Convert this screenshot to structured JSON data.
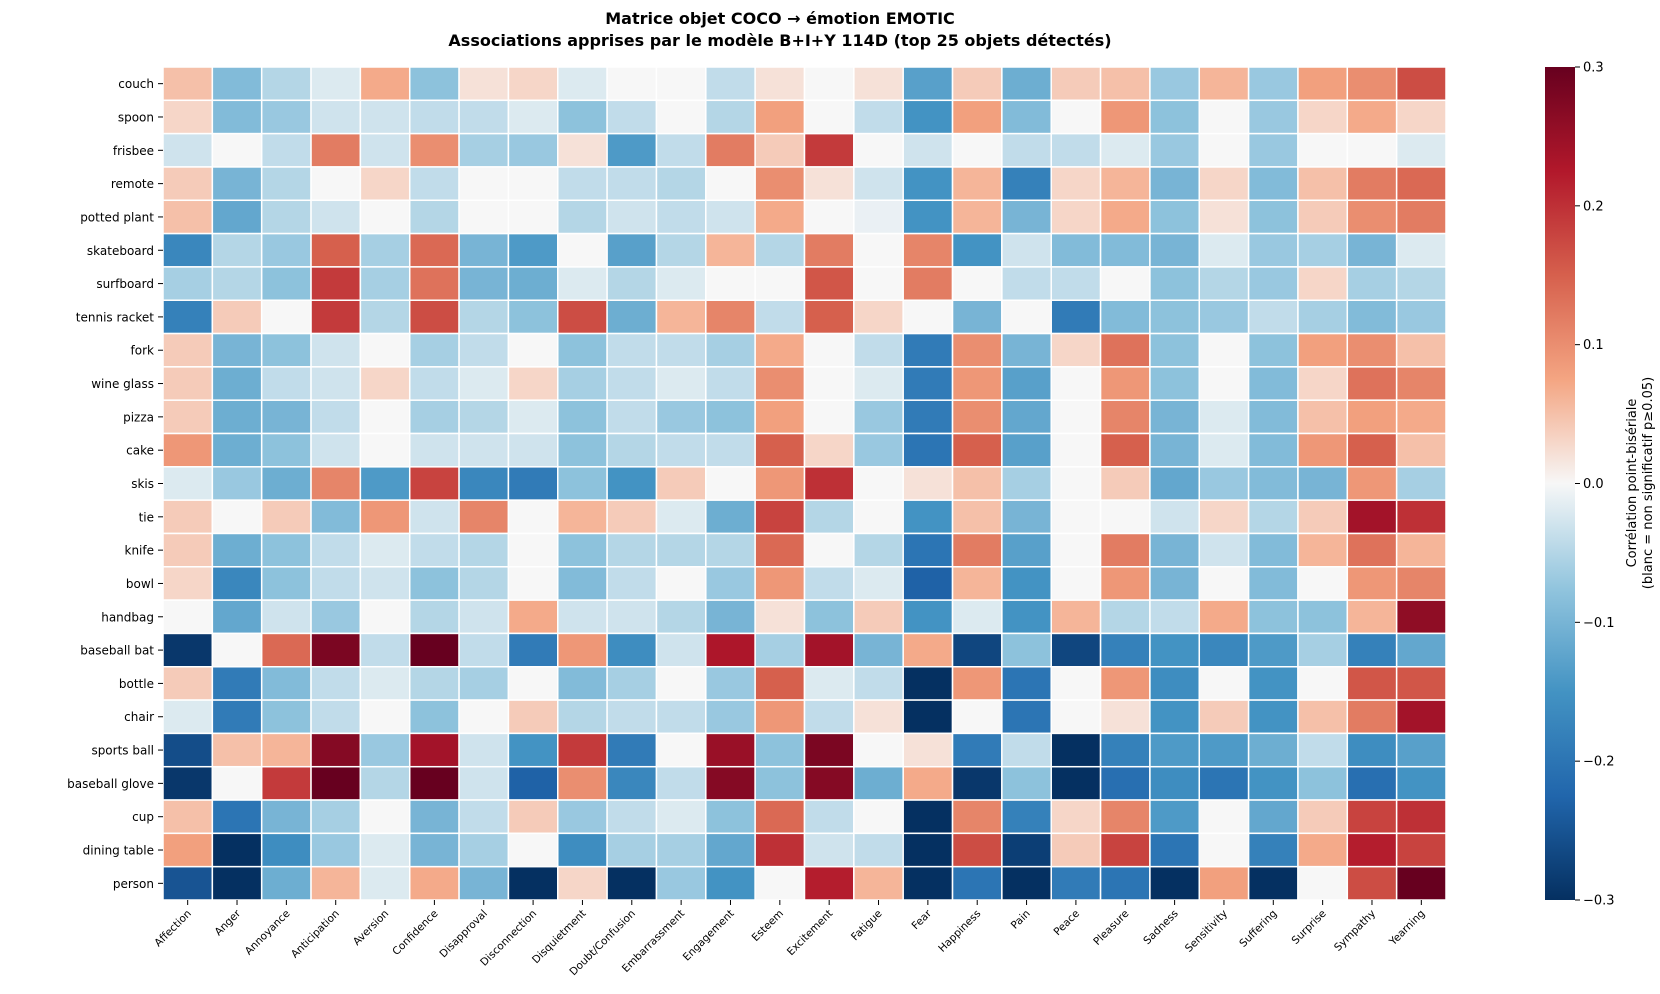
{
  "chart_data": {
    "type": "heatmap",
    "title": "Matrice objet COCO → émotion EMOTIC",
    "subtitle": "Associations apprises par le modèle B+I+Y 114D (top 25 objets détectés)",
    "xlabel": "",
    "ylabel": "",
    "colorbar_label_line1": "Corrélation point-bisériale",
    "colorbar_label_line2": "(blanc = non significatif p≥0.05)",
    "colormap": "RdBu_r",
    "vmin": -0.3,
    "vmax": 0.3,
    "colorbar_ticks": [
      "0.3",
      "0.2",
      "0.1",
      "0.0",
      "−0.1",
      "−0.2",
      "−0.3"
    ],
    "colorbar_tick_values": [
      0.3,
      0.2,
      0.1,
      0.0,
      -0.1,
      -0.2,
      -0.3
    ],
    "cell_border_color": "#ffffff",
    "columns": [
      "Affection",
      "Anger",
      "Annoyance",
      "Anticipation",
      "Aversion",
      "Confidence",
      "Disapproval",
      "Disconnection",
      "Disquietment",
      "Doubt/Confusion",
      "Embarrassment",
      "Engagement",
      "Esteem",
      "Excitement",
      "Fatigue",
      "Fear",
      "Happiness",
      "Pain",
      "Peace",
      "Pleasure",
      "Sadness",
      "Sensitivity",
      "Suffering",
      "Surprise",
      "Sympathy",
      "Yearning"
    ],
    "rows": [
      "couch",
      "spoon",
      "frisbee",
      "remote",
      "potted plant",
      "skateboard",
      "surfboard",
      "tennis racket",
      "fork",
      "wine glass",
      "pizza",
      "cake",
      "skis",
      "tie",
      "knife",
      "bowl",
      "handbag",
      "baseball bat",
      "bottle",
      "chair",
      "sports ball",
      "baseball glove",
      "cup",
      "dining table",
      "person"
    ],
    "values": [
      [
        0.05,
        -0.09,
        -0.05,
        -0.02,
        0.07,
        -0.08,
        0.02,
        0.03,
        -0.02,
        0.0,
        0.0,
        -0.04,
        0.02,
        0.0,
        0.02,
        -0.13,
        0.04,
        -0.11,
        0.04,
        0.05,
        -0.07,
        0.06,
        -0.07,
        0.08,
        0.1,
        0.17
      ],
      [
        0.03,
        -0.09,
        -0.07,
        -0.03,
        -0.03,
        -0.04,
        -0.04,
        -0.02,
        -0.08,
        -0.04,
        0.0,
        -0.05,
        0.08,
        0.0,
        -0.04,
        -0.15,
        0.08,
        -0.09,
        0.0,
        0.09,
        -0.08,
        0.0,
        -0.07,
        0.03,
        0.07,
        0.03
      ],
      [
        -0.03,
        0.0,
        -0.04,
        0.12,
        -0.03,
        0.1,
        -0.06,
        -0.07,
        0.02,
        -0.14,
        -0.04,
        0.12,
        0.04,
        0.19,
        0.0,
        -0.03,
        0.0,
        -0.04,
        -0.04,
        -0.02,
        -0.07,
        0.0,
        -0.07,
        0.0,
        0.0,
        -0.02
      ],
      [
        0.04,
        -0.1,
        -0.05,
        0.0,
        0.03,
        -0.04,
        0.0,
        0.0,
        -0.04,
        -0.04,
        -0.05,
        0.0,
        0.1,
        0.02,
        -0.03,
        -0.15,
        0.06,
        -0.18,
        0.03,
        0.06,
        -0.1,
        0.03,
        -0.09,
        0.05,
        0.12,
        0.14
      ],
      [
        0.05,
        -0.12,
        -0.05,
        -0.03,
        0.0,
        -0.05,
        0.0,
        0.0,
        -0.05,
        -0.03,
        -0.04,
        -0.03,
        0.07,
        0.0,
        -0.01,
        -0.15,
        0.06,
        -0.1,
        0.03,
        0.07,
        -0.08,
        0.02,
        -0.08,
        0.04,
        0.1,
        0.12
      ],
      [
        -0.17,
        -0.05,
        -0.07,
        0.15,
        -0.06,
        0.14,
        -0.1,
        -0.14,
        0.0,
        -0.13,
        -0.05,
        0.06,
        -0.05,
        0.12,
        0.0,
        0.11,
        -0.15,
        -0.03,
        -0.09,
        -0.09,
        -0.1,
        -0.02,
        -0.07,
        -0.06,
        -0.1,
        -0.02
      ],
      [
        -0.06,
        -0.05,
        -0.08,
        0.19,
        -0.06,
        0.13,
        -0.1,
        -0.11,
        -0.02,
        -0.05,
        -0.02,
        0.0,
        0.0,
        0.16,
        0.0,
        0.12,
        0.0,
        -0.04,
        -0.04,
        0.0,
        -0.08,
        -0.05,
        -0.07,
        0.03,
        -0.06,
        -0.05
      ],
      [
        -0.18,
        0.04,
        0.0,
        0.19,
        -0.05,
        0.17,
        -0.05,
        -0.08,
        0.17,
        -0.11,
        0.06,
        0.11,
        -0.04,
        0.15,
        0.03,
        0.0,
        -0.1,
        0.0,
        -0.19,
        -0.09,
        -0.08,
        -0.07,
        -0.04,
        -0.06,
        -0.09,
        -0.07
      ],
      [
        0.04,
        -0.1,
        -0.08,
        -0.03,
        0.0,
        -0.06,
        -0.04,
        0.0,
        -0.08,
        -0.04,
        -0.04,
        -0.06,
        0.07,
        0.0,
        -0.04,
        -0.19,
        0.1,
        -0.1,
        0.03,
        0.13,
        -0.08,
        0.0,
        -0.08,
        0.08,
        0.1,
        0.05
      ],
      [
        0.04,
        -0.11,
        -0.04,
        -0.03,
        0.03,
        -0.04,
        -0.02,
        0.03,
        -0.06,
        -0.04,
        -0.02,
        -0.04,
        0.1,
        0.0,
        -0.02,
        -0.19,
        0.09,
        -0.13,
        0.0,
        0.09,
        -0.08,
        0.0,
        -0.09,
        0.03,
        0.13,
        0.11
      ],
      [
        0.04,
        -0.11,
        -0.1,
        -0.04,
        0.0,
        -0.06,
        -0.05,
        -0.02,
        -0.08,
        -0.04,
        -0.07,
        -0.08,
        0.08,
        0.0,
        -0.07,
        -0.19,
        0.1,
        -0.12,
        0.0,
        0.11,
        -0.1,
        -0.02,
        -0.09,
        0.05,
        0.08,
        0.07
      ],
      [
        0.09,
        -0.11,
        -0.08,
        -0.03,
        0.0,
        -0.03,
        -0.03,
        -0.03,
        -0.08,
        -0.05,
        -0.04,
        -0.04,
        0.15,
        0.03,
        -0.07,
        -0.2,
        0.15,
        -0.13,
        0.0,
        0.15,
        -0.1,
        -0.02,
        -0.09,
        0.09,
        0.15,
        0.05
      ],
      [
        -0.02,
        -0.07,
        -0.11,
        0.11,
        -0.14,
        0.18,
        -0.17,
        -0.19,
        -0.08,
        -0.15,
        0.04,
        0.0,
        0.09,
        0.2,
        0.0,
        0.02,
        0.05,
        -0.06,
        0.0,
        0.04,
        -0.12,
        -0.07,
        -0.09,
        -0.1,
        0.09,
        -0.06
      ],
      [
        0.04,
        0.0,
        0.04,
        -0.09,
        0.09,
        -0.03,
        0.11,
        0.0,
        0.06,
        0.04,
        -0.02,
        -0.11,
        0.18,
        -0.05,
        0.0,
        -0.15,
        0.05,
        -0.1,
        0.0,
        0.0,
        -0.03,
        0.03,
        -0.05,
        0.04,
        0.24,
        0.2
      ],
      [
        0.04,
        -0.11,
        -0.08,
        -0.04,
        -0.02,
        -0.04,
        -0.05,
        0.0,
        -0.08,
        -0.05,
        -0.05,
        -0.05,
        0.14,
        0.0,
        -0.05,
        -0.2,
        0.12,
        -0.13,
        0.0,
        0.12,
        -0.1,
        -0.03,
        -0.09,
        0.06,
        0.13,
        0.06
      ],
      [
        0.03,
        -0.17,
        -0.08,
        -0.04,
        -0.03,
        -0.08,
        -0.05,
        0.0,
        -0.09,
        -0.04,
        0.0,
        -0.07,
        0.09,
        -0.04,
        -0.02,
        -0.23,
        0.06,
        -0.15,
        0.0,
        0.09,
        -0.1,
        0.0,
        -0.09,
        0.0,
        0.09,
        0.11
      ],
      [
        0.0,
        -0.12,
        -0.03,
        -0.07,
        0.0,
        -0.05,
        -0.03,
        0.07,
        -0.03,
        -0.03,
        -0.05,
        -0.1,
        0.02,
        -0.08,
        0.04,
        -0.15,
        -0.02,
        -0.15,
        0.06,
        -0.05,
        -0.04,
        0.07,
        -0.08,
        -0.08,
        0.06,
        0.26
      ],
      [
        -0.29,
        0.0,
        0.14,
        0.28,
        -0.04,
        0.3,
        -0.04,
        -0.19,
        0.09,
        -0.16,
        -0.03,
        0.23,
        -0.06,
        0.24,
        -0.1,
        0.07,
        -0.27,
        -0.08,
        -0.27,
        -0.18,
        -0.15,
        -0.17,
        -0.14,
        -0.06,
        -0.18,
        -0.12
      ],
      [
        0.04,
        -0.19,
        -0.09,
        -0.04,
        -0.02,
        -0.05,
        -0.06,
        0.0,
        -0.09,
        -0.06,
        0.0,
        -0.07,
        0.15,
        -0.02,
        -0.04,
        -0.3,
        0.09,
        -0.2,
        0.0,
        0.09,
        -0.16,
        0.0,
        -0.15,
        0.0,
        0.16,
        0.16
      ],
      [
        -0.02,
        -0.19,
        -0.08,
        -0.04,
        0.0,
        -0.08,
        0.0,
        0.04,
        -0.05,
        -0.04,
        -0.04,
        -0.07,
        0.09,
        -0.04,
        0.02,
        -0.3,
        0.0,
        -0.2,
        0.0,
        0.02,
        -0.15,
        0.04,
        -0.15,
        0.05,
        0.12,
        0.24
      ],
      [
        -0.26,
        0.05,
        0.06,
        0.27,
        -0.07,
        0.24,
        -0.03,
        -0.15,
        0.19,
        -0.19,
        0.0,
        0.25,
        -0.08,
        0.28,
        0.0,
        0.02,
        -0.19,
        -0.04,
        -0.3,
        -0.18,
        -0.14,
        -0.14,
        -0.11,
        -0.04,
        -0.16,
        -0.13
      ],
      [
        -0.29,
        0.0,
        0.19,
        0.3,
        -0.05,
        0.3,
        -0.03,
        -0.23,
        0.1,
        -0.17,
        -0.04,
        0.27,
        -0.08,
        0.27,
        -0.11,
        0.07,
        -0.29,
        -0.08,
        -0.3,
        -0.21,
        -0.16,
        -0.2,
        -0.15,
        -0.08,
        -0.21,
        -0.15
      ],
      [
        0.05,
        -0.2,
        -0.1,
        -0.06,
        0.0,
        -0.1,
        -0.04,
        0.04,
        -0.07,
        -0.04,
        -0.02,
        -0.08,
        0.14,
        -0.04,
        0.0,
        -0.3,
        0.11,
        -0.18,
        0.03,
        0.11,
        -0.14,
        0.0,
        -0.12,
        0.04,
        0.18,
        0.2
      ],
      [
        0.08,
        -0.3,
        -0.16,
        -0.07,
        -0.02,
        -0.1,
        -0.06,
        0.0,
        -0.16,
        -0.06,
        -0.06,
        -0.12,
        0.2,
        -0.03,
        -0.04,
        -0.3,
        0.17,
        -0.28,
        0.04,
        0.18,
        -0.2,
        0.0,
        -0.18,
        0.07,
        0.22,
        0.18
      ],
      [
        -0.25,
        -0.3,
        -0.11,
        0.06,
        -0.02,
        0.07,
        -0.1,
        -0.3,
        0.03,
        -0.3,
        -0.07,
        -0.15,
        0.0,
        0.22,
        0.06,
        -0.3,
        -0.2,
        -0.3,
        -0.19,
        -0.2,
        -0.3,
        0.08,
        -0.3,
        0.0,
        0.17,
        0.3
      ]
    ]
  }
}
